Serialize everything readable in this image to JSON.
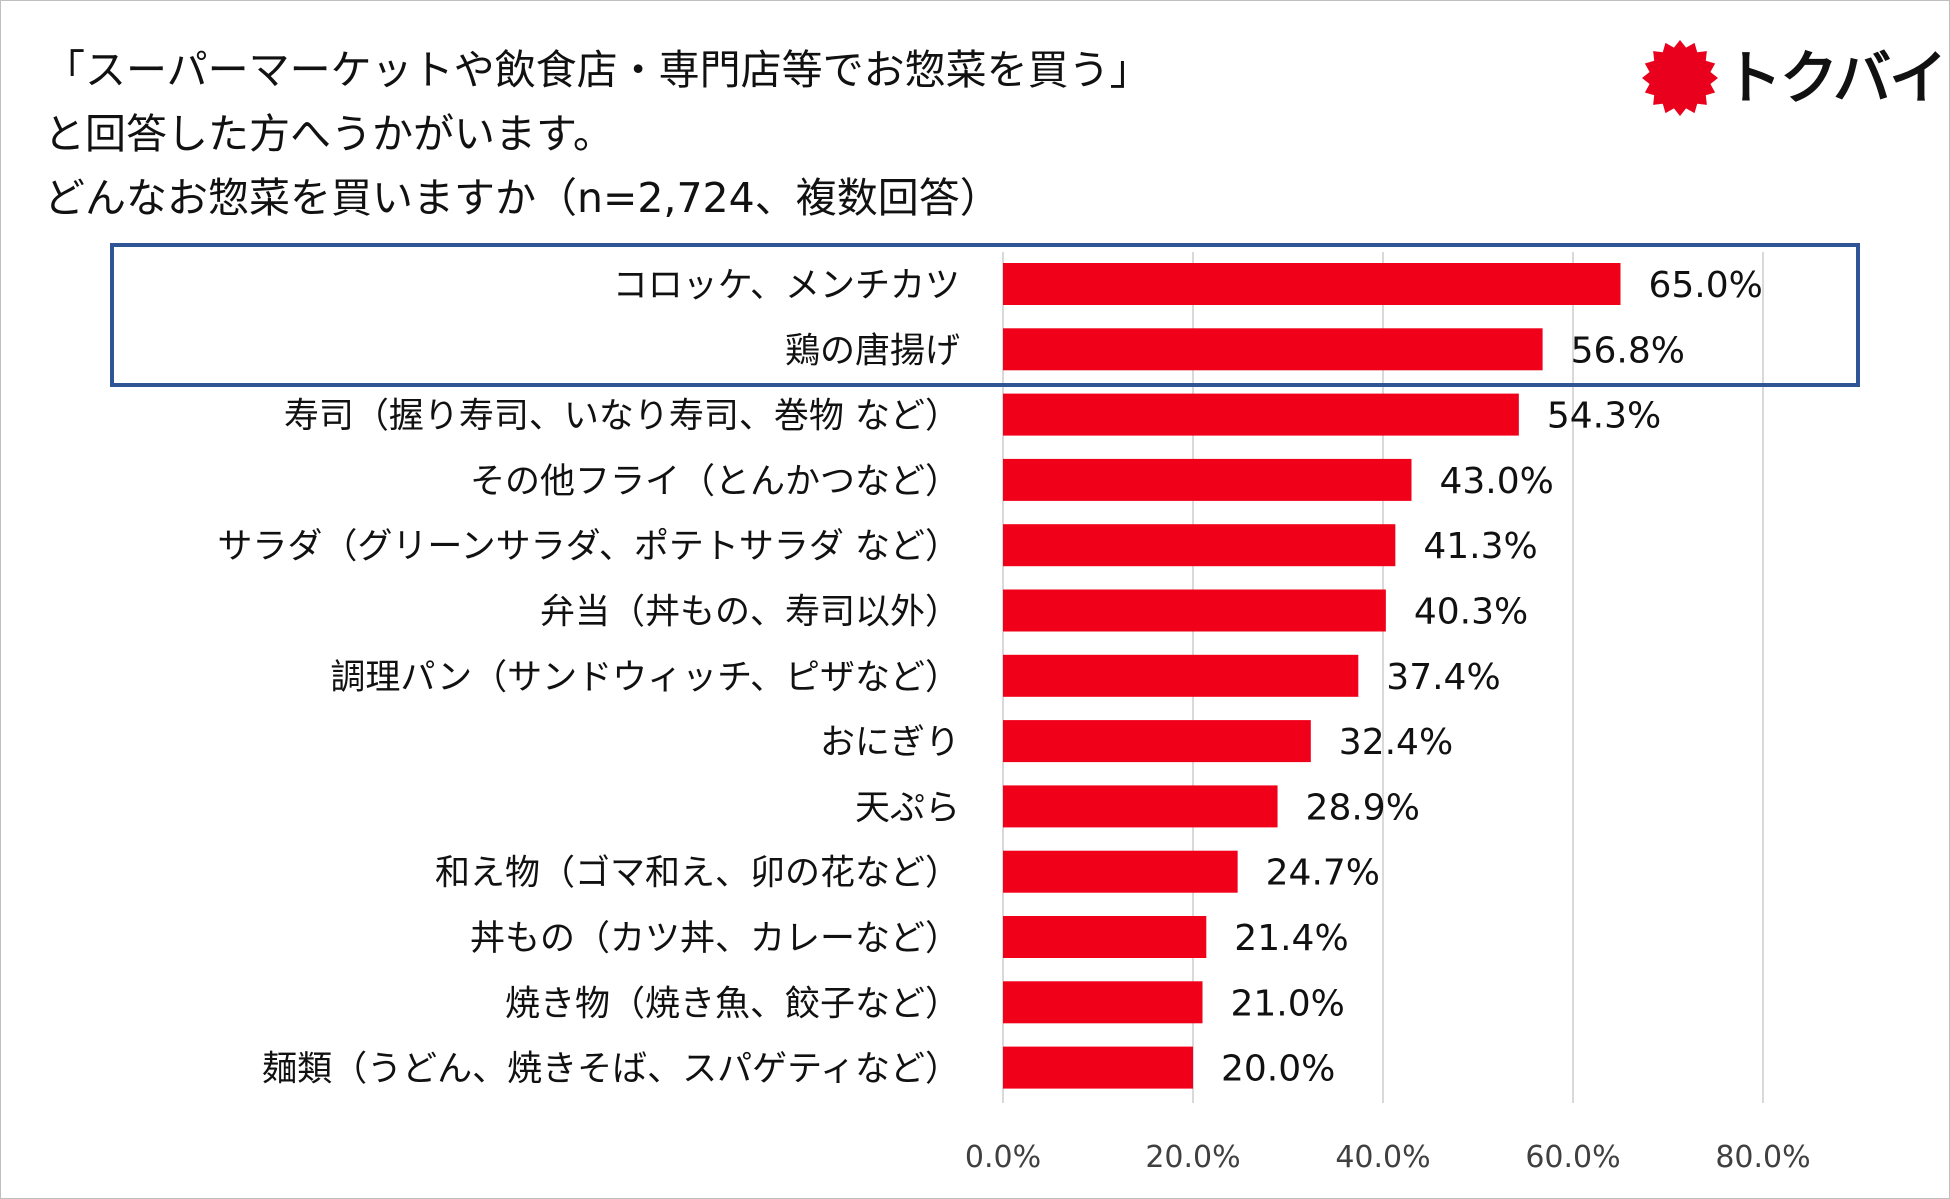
{
  "title": {
    "line1": "「スーパーマーケットや飲食店・専門店等でお惣菜を買う」",
    "line2": "と回答した方へうかがいます。",
    "line3": "どんなお惣菜を買いますか（n=2,724、複数回答）"
  },
  "brand": {
    "name": "トクバイ",
    "logo_color": "#e8001c"
  },
  "colors": {
    "bar": "#f00019",
    "highlight": "#2f5597",
    "gridline": "#d9d9d9"
  },
  "chart_data": {
    "type": "bar",
    "orientation": "horizontal",
    "categories": [
      "コロッケ、メンチカツ",
      "鶏の唐揚げ",
      "寿司（握り寿司、いなり寿司、巻物 など）",
      "その他フライ（とんかつなど）",
      "サラダ（グリーンサラダ、ポテトサラダ など）",
      "弁当（丼もの、寿司以外）",
      "調理パン（サンドウィッチ、ピザなど）",
      "おにぎり",
      "天ぷら",
      "和え物（ゴマ和え、卯の花など）",
      "丼もの（カツ丼、カレーなど）",
      "焼き物（焼き魚、餃子など）",
      "麺類（うどん、焼きそば、スパゲティなど）"
    ],
    "values": [
      65.0,
      56.8,
      54.3,
      43.0,
      41.3,
      40.3,
      37.4,
      32.4,
      28.9,
      24.7,
      21.4,
      21.0,
      20.0
    ],
    "value_labels": [
      "65.0%",
      "56.8%",
      "54.3%",
      "43.0%",
      "41.3%",
      "40.3%",
      "37.4%",
      "32.4%",
      "28.9%",
      "24.7%",
      "21.4%",
      "21.0%",
      "20.0%"
    ],
    "xlim": [
      0,
      80
    ],
    "xticks": [
      0,
      20,
      40,
      60,
      80
    ],
    "xtick_labels": [
      "0.0%",
      "20.0%",
      "40.0%",
      "60.0%",
      "80.0%"
    ],
    "gridlines": true,
    "highlighted_categories": [
      "コロッケ、メンチカツ",
      "鶏の唐揚げ"
    ]
  }
}
